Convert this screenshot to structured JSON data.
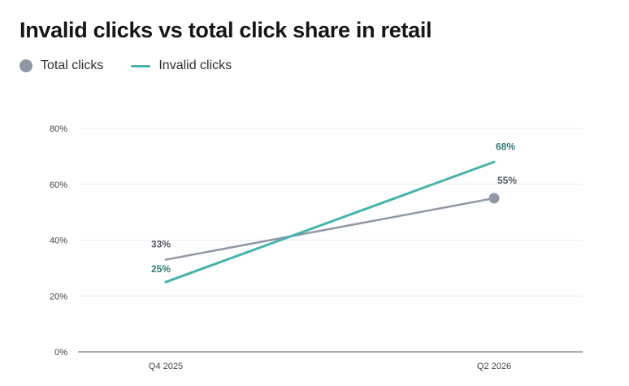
{
  "chart_data": {
    "type": "line",
    "title": "Invalid clicks vs total click share in retail",
    "categories": [
      "Q4 2025",
      "Q2 2026"
    ],
    "ylim": [
      0,
      80
    ],
    "yticks": [
      0,
      20,
      40,
      60,
      80
    ],
    "ytick_labels": [
      "0%",
      "20%",
      "40%",
      "60%",
      "80%"
    ],
    "grid": true,
    "legend_position": "top-left",
    "series": [
      {
        "name": "Total clicks",
        "values": [
          33,
          55
        ],
        "data_labels": [
          "33%",
          "55%"
        ],
        "color": "#9097a6",
        "end_marker": true
      },
      {
        "name": "Invalid clicks",
        "values": [
          25,
          68
        ],
        "data_labels": [
          "25%",
          "68%"
        ],
        "color": "#45b3ad",
        "label_color": "#2f7c78",
        "end_marker": false
      }
    ]
  },
  "colors": {
    "grid": "#ececec",
    "axis": "#555555",
    "tick_text": "#444444"
  }
}
